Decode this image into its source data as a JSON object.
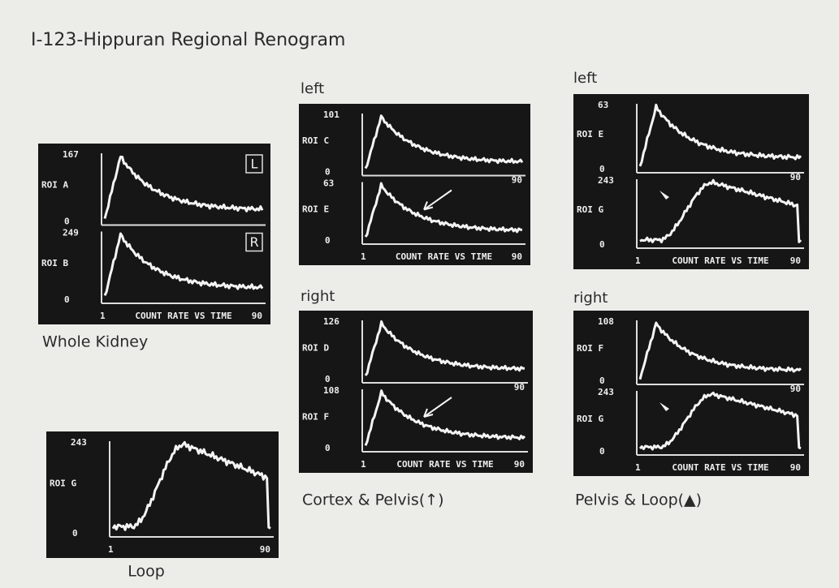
{
  "title": "I-123-Hippuran Regional Renogram",
  "panels": [
    {
      "traces": [
        {
          "max": 167,
          "roi": "ROI A",
          "marker": "L",
          "min": 0
        },
        {
          "max": 249,
          "roi": "ROI B",
          "marker": "R",
          "min": 0
        }
      ],
      "x_start": 1,
      "x_title": "COUNT RATE VS TIME",
      "x_end": 90,
      "caption": "Whole Kidney"
    },
    {
      "heading": "left",
      "traces": [
        {
          "max": 101,
          "roi": "ROI C",
          "min": 0
        },
        {
          "max": 63,
          "roi": "ROI E",
          "min": 0
        }
      ],
      "mid_x_end": 90,
      "x_start": 1,
      "x_title": "COUNT RATE VS TIME",
      "x_end": 90
    },
    {
      "heading": "right",
      "traces": [
        {
          "max": 126,
          "roi": "ROI D",
          "min": 0
        },
        {
          "max": 108,
          "roi": "ROI F",
          "min": 0
        }
      ],
      "mid_x_end": 90,
      "x_start": 1,
      "x_title": "COUNT RATE VS TIME",
      "x_end": 90,
      "caption": "Cortex & Pelvis(↑)"
    },
    {
      "heading": "left",
      "traces": [
        {
          "max": 63,
          "roi": "ROI E",
          "min": 0
        },
        {
          "max": 243,
          "roi": "ROI G",
          "min": 0
        }
      ],
      "mid_x_end": 90,
      "x_start": 1,
      "x_title": "COUNT RATE VS TIME",
      "x_end": 90
    },
    {
      "heading": "right",
      "traces": [
        {
          "max": 108,
          "roi": "ROI F",
          "min": 0
        },
        {
          "max": 243,
          "roi": "ROI G",
          "min": 0
        }
      ],
      "mid_x_end": 90,
      "x_start": 1,
      "x_title": "COUNT RATE VS TIME",
      "x_end": 90,
      "caption": "Pelvis & Loop(▲)"
    },
    {
      "traces": [
        {
          "max": 243,
          "roi": "ROI G",
          "min": 0
        }
      ],
      "x_start": 1,
      "x_end": 90,
      "caption": "Loop"
    }
  ]
}
